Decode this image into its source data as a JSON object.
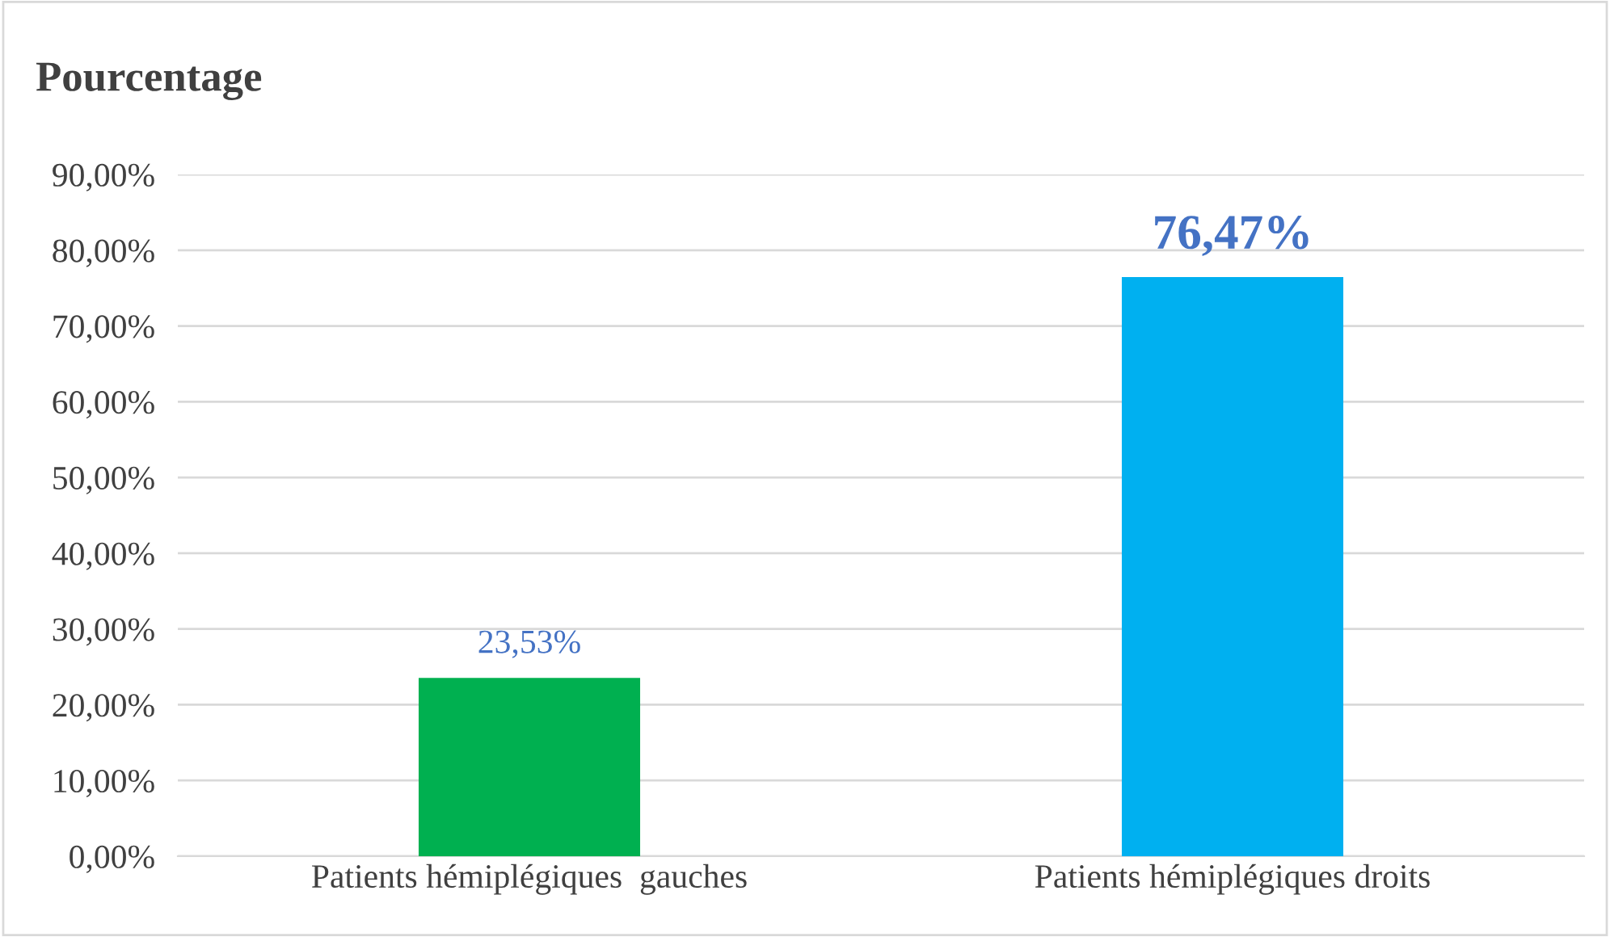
{
  "chart_data": {
    "type": "bar",
    "title": "Pourcentage",
    "categories": [
      "Patients hémiplégiques  gauches",
      "Patients hémiplégiques droits"
    ],
    "values": [
      23.53,
      76.47
    ],
    "colors": [
      "#00b050",
      "#00b0f0"
    ],
    "value_labels": [
      "23,53%",
      "76,47%"
    ],
    "ylim": [
      0,
      90
    ],
    "yticks": [
      {
        "value": 0,
        "label": "0,00%"
      },
      {
        "value": 10,
        "label": "10,00%"
      },
      {
        "value": 20,
        "label": "20,00%"
      },
      {
        "value": 30,
        "label": "30,00%"
      },
      {
        "value": 40,
        "label": "40,00%"
      },
      {
        "value": 50,
        "label": "50,00%"
      },
      {
        "value": 60,
        "label": "60,00%"
      },
      {
        "value": 70,
        "label": "70,00%"
      },
      {
        "value": 80,
        "label": "80,00%"
      },
      {
        "value": 90,
        "label": "90,00%"
      }
    ],
    "grid": "y",
    "legend": false
  }
}
